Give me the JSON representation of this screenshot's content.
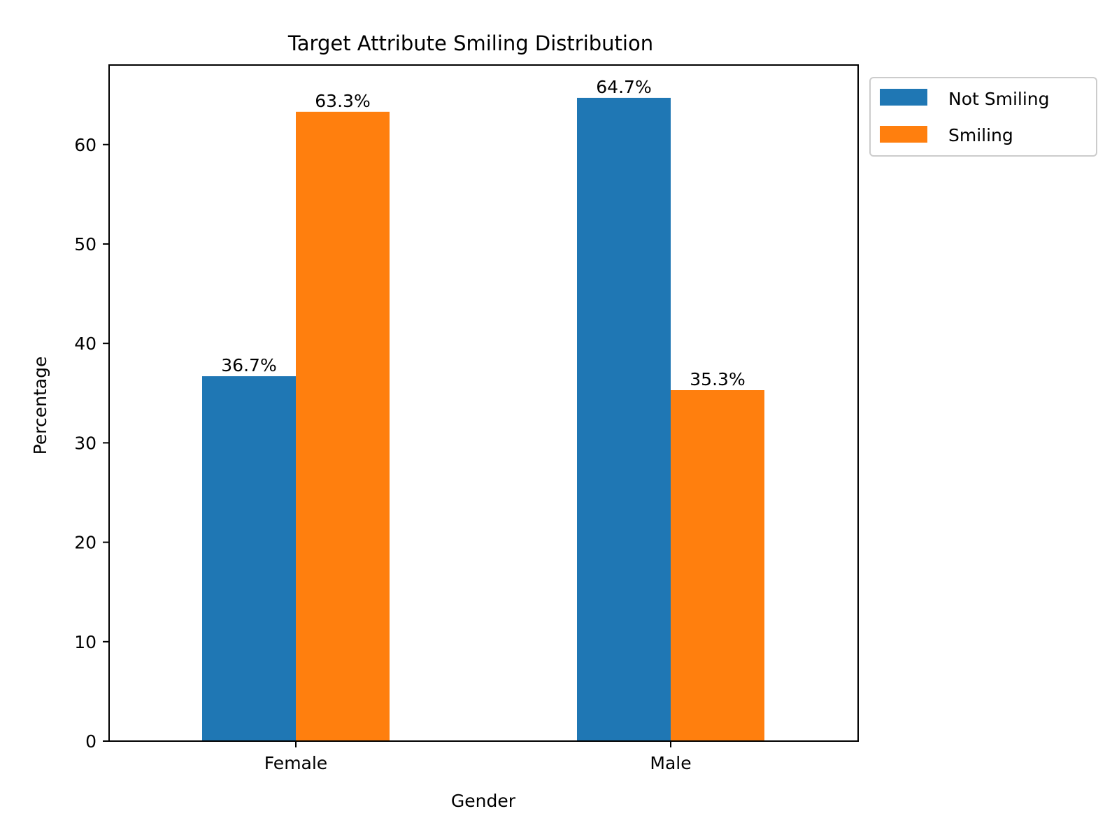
{
  "chart_data": {
    "type": "bar",
    "title": "Target Attribute Smiling Distribution",
    "xlabel": "Gender",
    "ylabel": "Percentage",
    "categories": [
      "Female",
      "Male"
    ],
    "series": [
      {
        "name": "Not Smiling",
        "values": [
          36.7,
          64.7
        ],
        "labels": [
          "36.7%",
          "64.7%"
        ],
        "color": "#1f77b4"
      },
      {
        "name": "Smiling",
        "values": [
          63.3,
          35.3
        ],
        "labels": [
          "63.3%",
          "35.3%"
        ],
        "color": "#ff7f0e"
      }
    ],
    "yticks": [
      0,
      10,
      20,
      30,
      40,
      50,
      60
    ],
    "ytick_labels": [
      "0",
      "10",
      "20",
      "30",
      "40",
      "50",
      "60"
    ],
    "ylim": [
      0,
      68
    ],
    "grid": false,
    "legend_position": "outside-top-right"
  }
}
